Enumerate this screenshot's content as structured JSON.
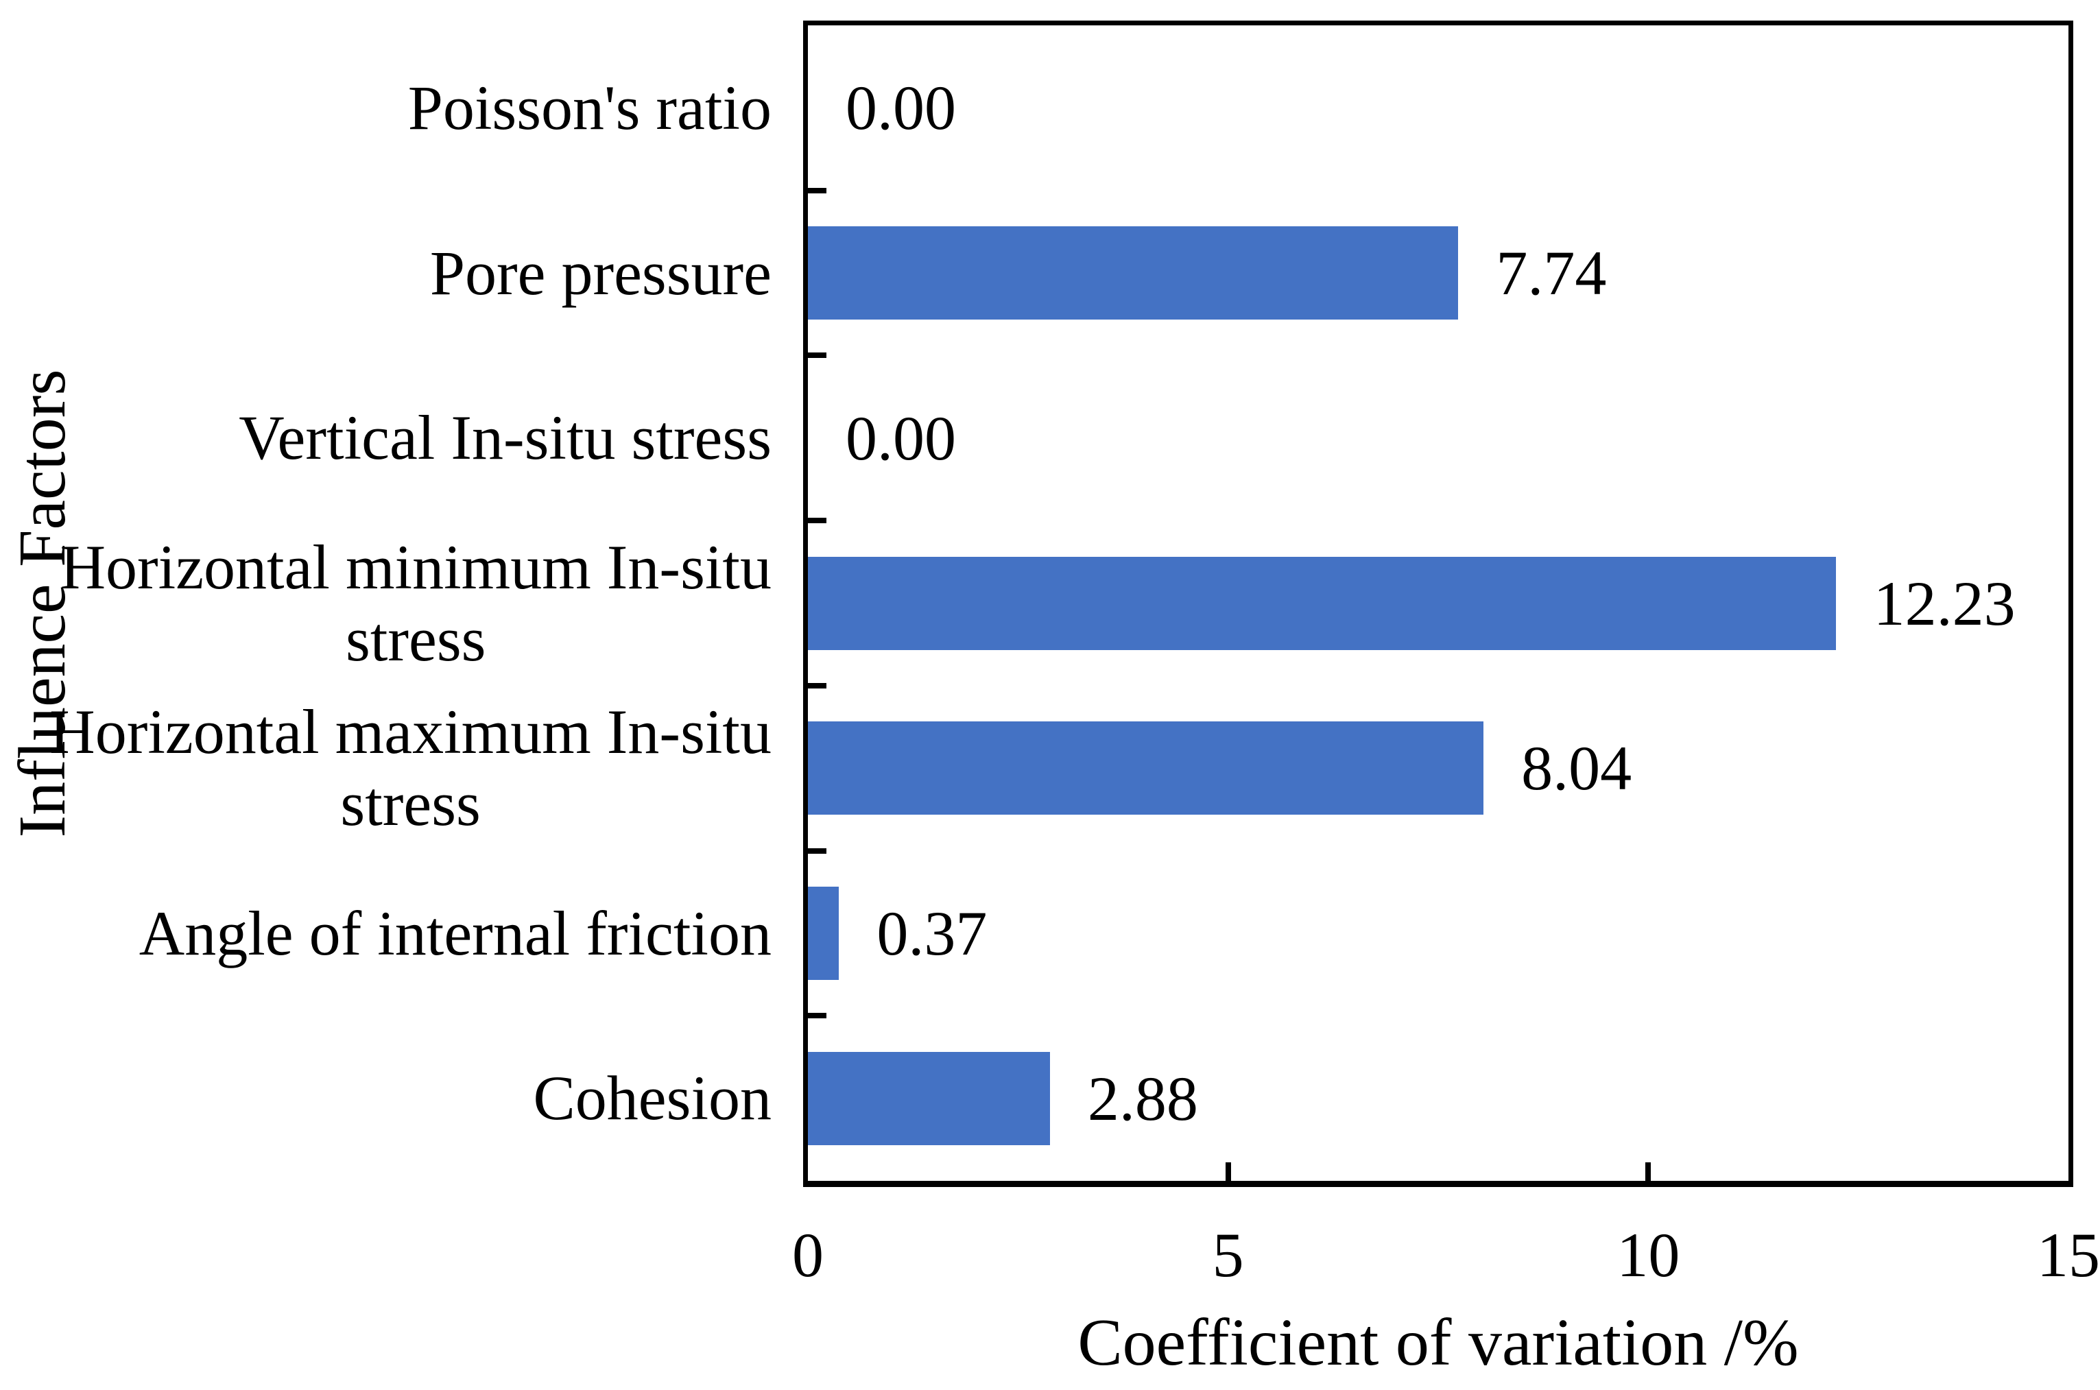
{
  "chart_data": {
    "type": "bar",
    "orientation": "horizontal",
    "title": "",
    "categories": [
      "Poisson's ratio",
      "Pore pressure",
      "Vertical In-situ stress",
      "Horizontal minimum In-situ\nstress",
      "Horizontal maximum In-situ\nstress",
      "Angle of internal friction",
      "Cohesion"
    ],
    "values": [
      0.0,
      7.74,
      0.0,
      12.23,
      8.04,
      0.37,
      2.88
    ],
    "value_labels": [
      "0.00",
      "7.74",
      "0.00",
      "12.23",
      "8.04",
      "0.37",
      "2.88"
    ],
    "xlabel": "Coefficient of variation /%",
    "ylabel": "Influence Factors",
    "xlim": [
      0,
      15
    ],
    "xticks": [
      "0",
      "5",
      "10",
      "15"
    ],
    "xtick_values": [
      0,
      5,
      10,
      15
    ],
    "grid": false,
    "legend": null,
    "bar_color": "#4472C4",
    "axis_color": "#000000",
    "background_color": "#FFFFFF"
  }
}
